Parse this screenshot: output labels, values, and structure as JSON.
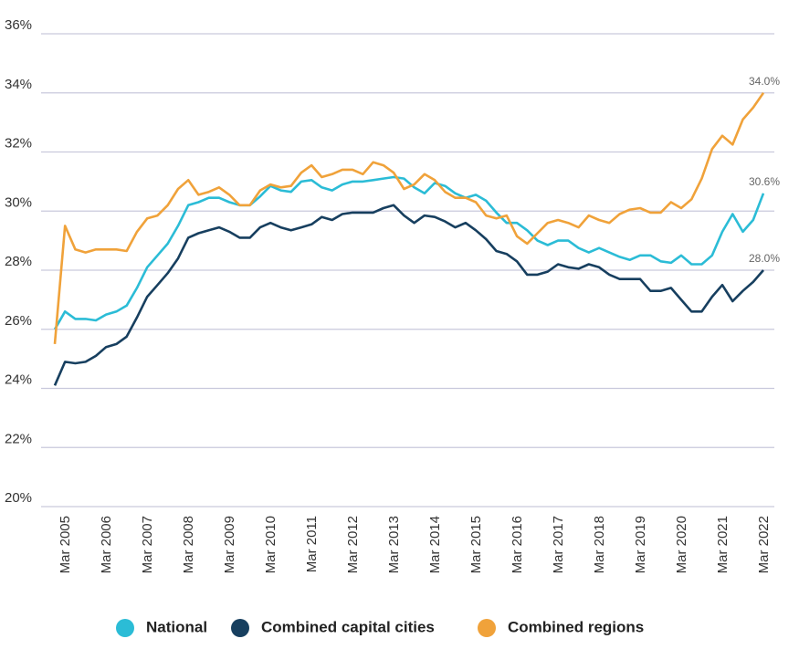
{
  "chart_data": {
    "type": "line",
    "categories": [
      null,
      "Mar 2005",
      null,
      null,
      null,
      "Mar 2006",
      null,
      null,
      null,
      "Mar 2007",
      null,
      null,
      null,
      "Mar 2008",
      null,
      null,
      null,
      "Mar 2009",
      null,
      null,
      null,
      "Mar 2010",
      null,
      null,
      null,
      "Mar 2011",
      null,
      null,
      null,
      "Mar 2012",
      null,
      null,
      null,
      "Mar 2013",
      null,
      null,
      null,
      "Mar 2014",
      null,
      null,
      null,
      "Mar 2015",
      null,
      null,
      null,
      "Mar 2016",
      null,
      null,
      null,
      "Mar 2017",
      null,
      null,
      null,
      "Mar 2018",
      null,
      null,
      null,
      "Mar 2019",
      null,
      null,
      null,
      "Mar 2020",
      null,
      null,
      null,
      "Mar 2021",
      null,
      null,
      null,
      "Mar 2022"
    ],
    "series": [
      {
        "name": "National",
        "color": "#2bbcd6",
        "values": [
          26.0,
          26.6,
          26.35,
          26.35,
          26.3,
          26.5,
          26.6,
          26.8,
          27.4,
          28.1,
          28.5,
          28.9,
          29.5,
          30.2,
          30.3,
          30.45,
          30.45,
          30.3,
          30.2,
          30.2,
          30.5,
          30.85,
          30.7,
          30.65,
          31.0,
          31.05,
          30.8,
          30.7,
          30.9,
          31.0,
          31.0,
          31.05,
          31.1,
          31.15,
          31.1,
          30.8,
          30.6,
          30.95,
          30.85,
          30.6,
          30.45,
          30.55,
          30.35,
          29.95,
          29.6,
          29.6,
          29.35,
          29.0,
          28.85,
          29.0,
          29.0,
          28.75,
          28.6,
          28.75,
          28.6,
          28.45,
          28.35,
          28.5,
          28.5,
          28.3,
          28.25,
          28.5,
          28.2,
          28.2,
          28.5,
          29.3,
          29.9,
          29.3,
          29.7,
          30.6
        ],
        "value_labels": [
          null,
          null,
          null,
          null,
          null,
          null,
          null,
          null,
          null,
          null,
          null,
          null,
          null,
          null,
          null,
          null,
          null,
          null,
          null,
          null,
          null,
          null,
          null,
          null,
          null,
          null,
          null,
          null,
          null,
          null,
          null,
          null,
          null,
          null,
          null,
          null,
          null,
          null,
          null,
          null,
          null,
          null,
          null,
          null,
          null,
          null,
          null,
          null,
          null,
          null,
          null,
          null,
          null,
          null,
          null,
          null,
          null,
          null,
          null,
          null,
          null,
          null,
          null,
          null,
          null,
          null,
          null,
          null,
          null,
          "30.6%"
        ]
      },
      {
        "name": "Combined capital cities",
        "color": "#173f5f",
        "values": [
          24.1,
          24.9,
          24.85,
          24.9,
          25.1,
          25.4,
          25.5,
          25.75,
          26.4,
          27.1,
          27.5,
          27.9,
          28.4,
          29.1,
          29.25,
          29.35,
          29.45,
          29.3,
          29.1,
          29.1,
          29.45,
          29.6,
          29.45,
          29.35,
          29.45,
          29.55,
          29.8,
          29.7,
          29.9,
          29.95,
          29.95,
          29.95,
          30.1,
          30.2,
          29.85,
          29.6,
          29.85,
          29.8,
          29.65,
          29.45,
          29.6,
          29.35,
          29.05,
          28.65,
          28.55,
          28.3,
          27.85,
          27.85,
          27.95,
          28.2,
          28.1,
          28.05,
          28.2,
          28.1,
          27.85,
          27.7,
          27.7,
          27.7,
          27.3,
          27.3,
          27.4,
          27.0,
          26.6,
          26.6,
          27.1,
          27.5,
          26.95,
          27.3,
          27.6,
          28.0
        ],
        "value_labels": [
          null,
          null,
          null,
          null,
          null,
          null,
          null,
          null,
          null,
          null,
          null,
          null,
          null,
          null,
          null,
          null,
          null,
          null,
          null,
          null,
          null,
          null,
          null,
          null,
          null,
          null,
          null,
          null,
          null,
          null,
          null,
          null,
          null,
          null,
          null,
          null,
          null,
          null,
          null,
          null,
          null,
          null,
          null,
          null,
          null,
          null,
          null,
          null,
          null,
          null,
          null,
          null,
          null,
          null,
          null,
          null,
          null,
          null,
          null,
          null,
          null,
          null,
          null,
          null,
          null,
          null,
          null,
          null,
          null,
          "28.0%"
        ]
      },
      {
        "name": "Combined regions",
        "color": "#f0a23a",
        "values": [
          25.5,
          29.5,
          28.7,
          28.6,
          28.7,
          28.7,
          28.7,
          28.65,
          29.3,
          29.75,
          29.85,
          30.2,
          30.75,
          31.05,
          30.55,
          30.65,
          30.8,
          30.55,
          30.2,
          30.2,
          30.7,
          30.9,
          30.8,
          30.85,
          31.3,
          31.55,
          31.15,
          31.25,
          31.4,
          31.4,
          31.25,
          31.65,
          31.55,
          31.3,
          30.75,
          30.9,
          31.25,
          31.05,
          30.65,
          30.45,
          30.45,
          30.3,
          29.85,
          29.75,
          29.85,
          29.15,
          28.9,
          29.25,
          29.6,
          29.7,
          29.6,
          29.45,
          29.85,
          29.7,
          29.6,
          29.9,
          30.05,
          30.1,
          29.95,
          29.95,
          30.3,
          30.1,
          30.4,
          31.1,
          32.1,
          32.55,
          32.25,
          33.1,
          33.5,
          34.0
        ],
        "value_labels": [
          null,
          null,
          null,
          null,
          null,
          null,
          null,
          null,
          null,
          null,
          null,
          null,
          null,
          null,
          null,
          null,
          null,
          null,
          null,
          null,
          null,
          null,
          null,
          null,
          null,
          null,
          null,
          null,
          null,
          null,
          null,
          null,
          null,
          null,
          null,
          null,
          null,
          null,
          null,
          null,
          null,
          null,
          null,
          null,
          null,
          null,
          null,
          null,
          null,
          null,
          null,
          null,
          null,
          null,
          null,
          null,
          null,
          null,
          null,
          null,
          null,
          null,
          null,
          null,
          null,
          null,
          null,
          null,
          null,
          "34.0%"
        ]
      }
    ],
    "ylim": [
      20,
      36
    ],
    "yticks": [
      {
        "value": 20,
        "label": "20%"
      },
      {
        "value": 22,
        "label": "22%"
      },
      {
        "value": 24,
        "label": "24%"
      },
      {
        "value": 26,
        "label": "26%"
      },
      {
        "value": 28,
        "label": "28%"
      },
      {
        "value": 30,
        "label": "30%"
      },
      {
        "value": 32,
        "label": "32%"
      },
      {
        "value": 34,
        "label": "34%"
      },
      {
        "value": 36,
        "label": "36%"
      }
    ],
    "grid": true,
    "legend": "bottom"
  }
}
